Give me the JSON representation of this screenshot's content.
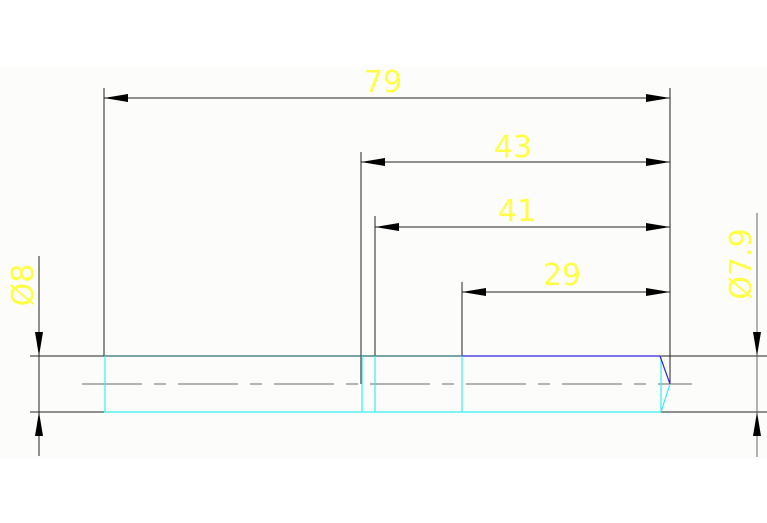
{
  "drawing": {
    "background": "#fcfdfb",
    "colors": {
      "dimension_text": "#ffff44",
      "dimension_lines": "#222222",
      "part_edges": "#33f0f0",
      "highlight_edge": "#3322dd",
      "centerline": "#999999"
    },
    "dimensions": {
      "overall": "79",
      "d43": "43",
      "d41": "41",
      "d29": "29",
      "dia_left": "Ø8",
      "dia_right": "Ø7.9"
    }
  }
}
